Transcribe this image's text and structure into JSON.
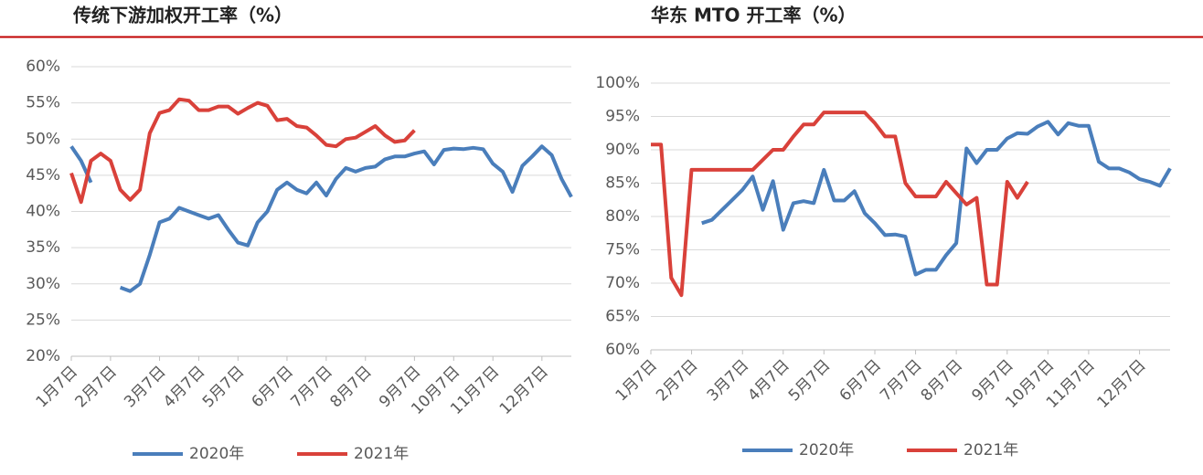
{
  "chart_data": [
    {
      "type": "line",
      "title": "传统下游加权开工率（%）",
      "categories": [
        "1月7日",
        null,
        null,
        null,
        "2月7日",
        null,
        null,
        null,
        null,
        "3月7日",
        null,
        null,
        null,
        "4月7日",
        null,
        null,
        null,
        "5月7日",
        null,
        null,
        null,
        null,
        "6月7日",
        null,
        null,
        null,
        "7月7日",
        null,
        null,
        null,
        "8月7日",
        null,
        null,
        null,
        null,
        "9月7日",
        null,
        null,
        null,
        "10月7日",
        null,
        null,
        null,
        "11月7日",
        null,
        null,
        null,
        null,
        "12月7日",
        null,
        null,
        null
      ],
      "series": [
        {
          "name": "2020年",
          "color": "#4a7ebb",
          "values": [
            49,
            47,
            44,
            null,
            null,
            29.5,
            29,
            30,
            34,
            38.5,
            39,
            40.5,
            40,
            39.5,
            39,
            39.5,
            37.5,
            35.7,
            35.3,
            38.5,
            40,
            43,
            44,
            43,
            42.5,
            44,
            42.2,
            44.5,
            46,
            45.5,
            46,
            46.2,
            47.2,
            47.6,
            47.6,
            48,
            48.3,
            46.5,
            48.5,
            48.7,
            48.6,
            48.8,
            48.6,
            46.6,
            45.5,
            42.7,
            46.3,
            47.6,
            49,
            47.8,
            44.5,
            42
          ]
        },
        {
          "name": "2021年",
          "color": "#d9413a",
          "values": [
            45.3,
            41.3,
            47,
            48,
            47,
            43,
            41.6,
            43,
            50.8,
            53.6,
            54,
            55.5,
            55.3,
            54,
            54,
            54.5,
            54.5,
            53.5,
            54.3,
            55,
            54.6,
            52.6,
            52.8,
            51.8,
            51.6,
            50.5,
            49.2,
            49,
            50,
            50.2,
            51,
            51.8,
            50.5,
            49.6,
            49.8,
            51.2,
            null,
            null,
            null,
            null,
            null,
            null,
            null,
            null,
            null,
            null,
            null,
            null,
            null,
            null,
            null,
            null
          ]
        }
      ],
      "ylim": [
        20,
        60
      ],
      "yticks": [
        {
          "value": 20,
          "label": "20%"
        },
        {
          "value": 25,
          "label": "25%"
        },
        {
          "value": 30,
          "label": "30%"
        },
        {
          "value": 35,
          "label": "35%"
        },
        {
          "value": 40,
          "label": "40%"
        },
        {
          "value": 45,
          "label": "45%"
        },
        {
          "value": 50,
          "label": "50%"
        },
        {
          "value": 55,
          "label": "55%"
        },
        {
          "value": 60,
          "label": "60%"
        }
      ],
      "grid": true,
      "legend": "bottom"
    },
    {
      "type": "line",
      "title": "华东 MTO 开工率（%）",
      "categories": [
        "1月7日",
        null,
        null,
        null,
        "2月7日",
        null,
        null,
        null,
        null,
        "3月7日",
        null,
        null,
        null,
        "4月7日",
        null,
        null,
        null,
        "5月7日",
        null,
        null,
        null,
        null,
        "6月7日",
        null,
        null,
        null,
        "7月7日",
        null,
        null,
        null,
        "8月7日",
        null,
        null,
        null,
        null,
        "9月7日",
        null,
        null,
        null,
        "10月7日",
        null,
        null,
        null,
        "11月7日",
        null,
        null,
        null,
        null,
        "12月7日",
        null,
        null,
        null
      ],
      "series": [
        {
          "name": "2020年",
          "color": "#4a7ebb",
          "values": [
            null,
            null,
            null,
            null,
            null,
            79,
            79.5,
            81,
            82.5,
            84,
            86,
            81,
            85.3,
            78,
            82,
            82.3,
            82,
            87,
            82.4,
            82.4,
            83.8,
            80.5,
            79,
            77.2,
            77.3,
            77,
            71.3,
            72,
            72,
            74.2,
            76,
            90.2,
            88,
            90,
            90,
            91.7,
            92.5,
            92.4,
            93.5,
            94.2,
            92.3,
            94,
            93.6,
            93.6,
            88.2,
            87.2,
            87.2,
            86.6,
            85.6,
            85.2,
            84.6,
            87.2
          ]
        },
        {
          "name": "2021年",
          "color": "#d9413a",
          "values": [
            90.8,
            90.8,
            70.8,
            68.2,
            87,
            87,
            87,
            87,
            87,
            87,
            87,
            88.5,
            90,
            90,
            92,
            93.8,
            93.8,
            95.6,
            95.6,
            95.6,
            95.6,
            95.6,
            94,
            92,
            92,
            85,
            83,
            83,
            83,
            85.2,
            83.5,
            81.8,
            82.8,
            69.8,
            69.8,
            85.2,
            82.8,
            85.2,
            null,
            null,
            null,
            null,
            null,
            null,
            null,
            null,
            null,
            null,
            null,
            null,
            null,
            null
          ]
        }
      ],
      "ylim": [
        60,
        100
      ],
      "yticks": [
        {
          "value": 60,
          "label": "60%"
        },
        {
          "value": 65,
          "label": "65%"
        },
        {
          "value": 70,
          "label": "70%"
        },
        {
          "value": 75,
          "label": "75%"
        },
        {
          "value": 80,
          "label": "80%"
        },
        {
          "value": 85,
          "label": "85%"
        },
        {
          "value": 90,
          "label": "90%"
        },
        {
          "value": 95,
          "label": "95%"
        },
        {
          "value": 100,
          "label": "100%"
        }
      ],
      "grid": true,
      "legend": "bottom"
    }
  ]
}
